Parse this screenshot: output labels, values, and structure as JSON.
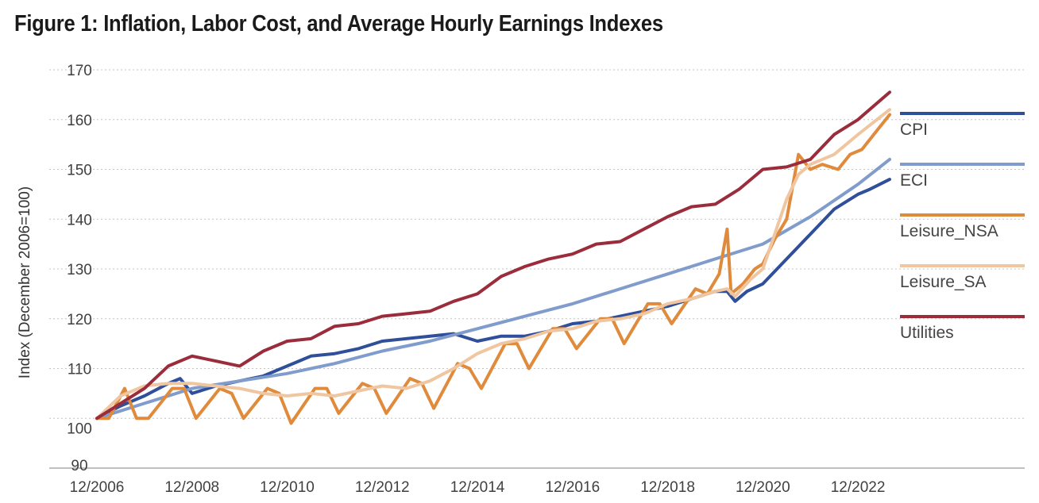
{
  "title": "Figure 1: Inflation, Labor Cost, and Average Hourly Earnings Indexes",
  "chart_data": {
    "type": "line",
    "title": "Figure 1: Inflation, Labor Cost, and Average Hourly Earnings Indexes",
    "ylabel": "Index (December 2006=100)",
    "xlabel": "",
    "ylim": [
      90,
      170
    ],
    "yticks": [
      "170",
      "160",
      "150",
      "140",
      "130",
      "120",
      "110",
      "100",
      "90"
    ],
    "xlim": [
      "2006-12",
      "2023-08"
    ],
    "xticks": [
      "12/2006",
      "12/2008",
      "12/2010",
      "12/2012",
      "12/2014",
      "12/2016",
      "12/2018",
      "12/2020",
      "12/2022"
    ],
    "grid": "horizontal-dotted",
    "legend_position": "right",
    "colors": {
      "CPI": "#2f4f9a",
      "ECI": "#7f9ccc",
      "Leisure_NSA": "#e08a3c",
      "Leisure_SA": "#efc6a0",
      "Utilities": "#9b2c3c"
    },
    "series": [
      {
        "name": "CPI",
        "color": "#2f4f9a",
        "x": [
          "2006-12",
          "2007-06",
          "2007-12",
          "2008-06",
          "2008-09",
          "2008-12",
          "2009-06",
          "2009-12",
          "2010-06",
          "2010-12",
          "2011-06",
          "2011-12",
          "2012-06",
          "2012-12",
          "2013-06",
          "2013-12",
          "2014-06",
          "2014-12",
          "2015-06",
          "2015-12",
          "2016-06",
          "2016-12",
          "2017-06",
          "2017-12",
          "2018-06",
          "2018-12",
          "2019-06",
          "2019-12",
          "2020-03",
          "2020-05",
          "2020-08",
          "2020-12",
          "2021-06",
          "2021-12",
          "2022-06",
          "2022-12",
          "2023-03",
          "2023-08"
        ],
        "values": [
          100,
          102.5,
          104.5,
          107,
          108,
          105,
          106.5,
          107.5,
          108.5,
          110.5,
          112.5,
          113,
          114,
          115.5,
          116,
          116.5,
          117,
          115.5,
          116.5,
          116.5,
          117.5,
          119,
          119.5,
          120.5,
          121.5,
          122.5,
          124,
          125.5,
          125.5,
          123.5,
          125.5,
          127,
          132,
          137,
          142,
          145,
          146,
          148
        ]
      },
      {
        "name": "ECI",
        "color": "#7f9ccc",
        "x": [
          "2006-12",
          "2007-12",
          "2008-12",
          "2009-12",
          "2010-12",
          "2011-12",
          "2012-12",
          "2013-12",
          "2014-12",
          "2015-12",
          "2016-12",
          "2017-12",
          "2018-12",
          "2019-12",
          "2020-12",
          "2021-12",
          "2022-12",
          "2023-08"
        ],
        "values": [
          100,
          103,
          106,
          107.5,
          109,
          111,
          113.5,
          115.5,
          118,
          120.5,
          123,
          126,
          129,
          132,
          135,
          140.5,
          147,
          152
        ]
      },
      {
        "name": "Leisure_NSA",
        "color": "#e08a3c",
        "x": [
          "2006-12",
          "2007-03",
          "2007-07",
          "2007-10",
          "2008-01",
          "2008-07",
          "2008-10",
          "2009-01",
          "2009-07",
          "2009-10",
          "2010-01",
          "2010-07",
          "2010-10",
          "2011-01",
          "2011-07",
          "2011-10",
          "2012-01",
          "2012-07",
          "2012-10",
          "2013-01",
          "2013-07",
          "2013-10",
          "2014-01",
          "2014-07",
          "2014-10",
          "2015-01",
          "2015-07",
          "2015-10",
          "2016-01",
          "2016-07",
          "2016-10",
          "2017-01",
          "2017-07",
          "2017-10",
          "2018-01",
          "2018-07",
          "2018-10",
          "2019-01",
          "2019-07",
          "2019-10",
          "2020-01",
          "2020-03",
          "2020-04",
          "2020-07",
          "2020-10",
          "2020-12",
          "2021-03",
          "2021-06",
          "2021-09",
          "2021-12",
          "2022-03",
          "2022-07",
          "2022-10",
          "2023-01",
          "2023-05",
          "2023-08"
        ],
        "values": [
          100,
          100,
          106,
          100,
          100,
          106,
          106,
          100,
          106,
          105,
          100,
          106,
          105,
          99,
          106,
          106,
          101,
          107,
          106,
          101,
          108,
          107,
          102,
          111,
          110,
          106,
          115,
          115,
          110,
          118,
          118,
          114,
          120,
          120,
          115,
          123,
          123,
          119,
          126,
          125,
          129,
          138,
          125,
          127,
          130,
          131,
          136,
          140,
          153,
          150,
          151,
          150,
          153,
          154,
          158,
          161
        ]
      },
      {
        "name": "Leisure_SA",
        "color": "#efc6a0",
        "x": [
          "2006-12",
          "2007-06",
          "2007-12",
          "2008-06",
          "2008-12",
          "2009-06",
          "2009-12",
          "2010-06",
          "2010-12",
          "2011-06",
          "2011-12",
          "2012-06",
          "2012-12",
          "2013-06",
          "2013-12",
          "2014-06",
          "2014-12",
          "2015-06",
          "2015-12",
          "2016-06",
          "2016-12",
          "2017-06",
          "2017-12",
          "2018-06",
          "2018-12",
          "2019-06",
          "2019-12",
          "2020-03",
          "2020-05",
          "2020-09",
          "2020-12",
          "2021-06",
          "2021-09",
          "2021-12",
          "2022-06",
          "2022-12",
          "2023-08"
        ],
        "values": [
          100,
          104.5,
          106.5,
          107,
          107,
          106.5,
          106,
          105,
          104.5,
          105,
          104.5,
          105.5,
          106.5,
          106,
          107.5,
          110,
          113,
          115,
          116,
          117.5,
          118,
          119.5,
          120,
          121,
          123,
          124,
          125.5,
          126,
          124.5,
          128,
          130,
          144,
          149,
          151,
          153,
          157,
          162
        ]
      },
      {
        "name": "Utilities",
        "color": "#9b2c3c",
        "x": [
          "2006-12",
          "2007-06",
          "2007-12",
          "2008-06",
          "2008-12",
          "2009-06",
          "2009-12",
          "2010-06",
          "2010-12",
          "2011-06",
          "2011-12",
          "2012-06",
          "2012-12",
          "2013-06",
          "2013-12",
          "2014-06",
          "2014-12",
          "2015-06",
          "2015-12",
          "2016-06",
          "2016-12",
          "2017-06",
          "2017-12",
          "2018-06",
          "2018-12",
          "2019-06",
          "2019-12",
          "2020-06",
          "2020-12",
          "2021-06",
          "2021-12",
          "2022-06",
          "2022-12",
          "2023-08"
        ],
        "values": [
          100,
          103,
          106,
          110.5,
          112.5,
          111.5,
          110.5,
          113.5,
          115.5,
          116,
          118.5,
          119,
          120.5,
          121,
          121.5,
          123.5,
          125,
          128.5,
          130.5,
          132,
          133,
          135,
          135.5,
          138,
          140.5,
          142.5,
          143,
          146,
          150,
          150.5,
          152,
          157,
          160,
          165.5
        ]
      }
    ]
  }
}
